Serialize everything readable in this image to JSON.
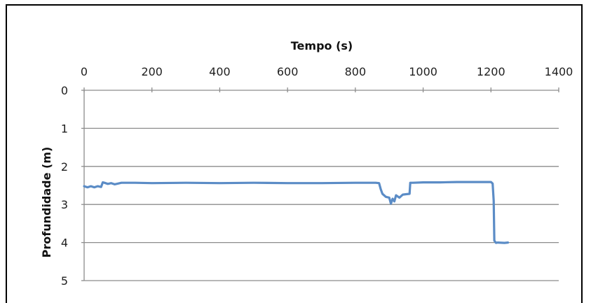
{
  "chart_data": {
    "type": "line",
    "xlabel": "Tempo (s)",
    "ylabel": "Profundidade (m)",
    "x_axis_position": "top",
    "y_axis_inverted": true,
    "xlim": [
      0,
      1400
    ],
    "ylim": [
      0,
      5
    ],
    "x_ticks": [
      "0",
      "200",
      "400",
      "600",
      "800",
      "1000",
      "1200",
      "1400"
    ],
    "y_ticks": [
      "0",
      "1",
      "2",
      "3",
      "4",
      "5"
    ],
    "grid": "horizontal",
    "series": [
      {
        "color": "#5b8cc6",
        "x": [
          0,
          10,
          20,
          30,
          40,
          50,
          55,
          60,
          70,
          80,
          90,
          100,
          110,
          150,
          200,
          300,
          400,
          500,
          600,
          700,
          800,
          860,
          870,
          875,
          880,
          890,
          900,
          905,
          910,
          915,
          920,
          930,
          940,
          950,
          960,
          962,
          970,
          1000,
          1050,
          1100,
          1150,
          1200,
          1205,
          1208,
          1210,
          1215,
          1220,
          1240,
          1250
        ],
        "y": [
          2.52,
          2.55,
          2.52,
          2.55,
          2.52,
          2.54,
          2.42,
          2.43,
          2.46,
          2.44,
          2.47,
          2.45,
          2.43,
          2.43,
          2.44,
          2.43,
          2.44,
          2.43,
          2.44,
          2.44,
          2.43,
          2.43,
          2.44,
          2.6,
          2.72,
          2.8,
          2.82,
          2.98,
          2.85,
          2.92,
          2.76,
          2.82,
          2.74,
          2.73,
          2.72,
          2.43,
          2.43,
          2.42,
          2.42,
          2.41,
          2.41,
          2.41,
          2.45,
          2.9,
          3.95,
          4.01,
          4.0,
          4.01,
          4.0
        ]
      }
    ]
  }
}
